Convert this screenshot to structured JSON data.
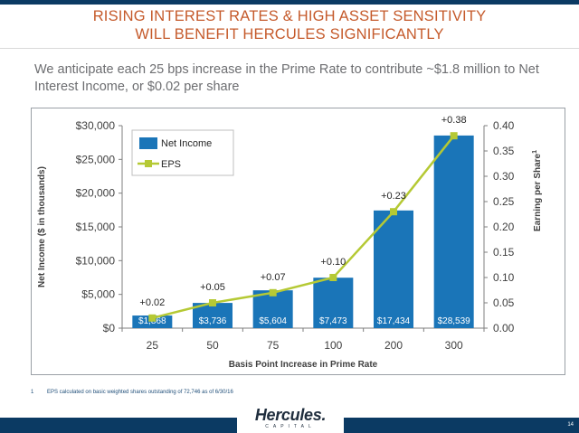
{
  "header": {
    "title_line1": "RISING INTEREST RATES & HIGH ASSET SENSITIVITY",
    "title_line2": "WILL BENEFIT HERCULES SIGNIFICANTLY"
  },
  "subtitle": "We anticipate each 25 bps increase in the Prime Rate to contribute ~$1.8 million to Net Interest Income, or $0.02 per share",
  "chart_data": {
    "type": "bar",
    "categories": [
      "25",
      "50",
      "75",
      "100",
      "200",
      "300"
    ],
    "xlabel": "Basis Point Increase in Prime Rate",
    "ylabel": "Net Income ($ in thousands)",
    "y2label": "Earning per Share",
    "y2label_superscript": "1",
    "ylim": [
      0,
      30000
    ],
    "y2lim": [
      0,
      0.4
    ],
    "yticks": [
      "$0",
      "$5,000",
      "$10,000",
      "$15,000",
      "$20,000",
      "$25,000",
      "$30,000"
    ],
    "y2ticks": [
      "0.00",
      "0.05",
      "0.10",
      "0.15",
      "0.20",
      "0.25",
      "0.30",
      "0.35",
      "0.40"
    ],
    "series": [
      {
        "name": "Net Income",
        "kind": "bar",
        "color": "#1a75b8",
        "values": [
          1868,
          3736,
          5604,
          7473,
          17434,
          28539
        ],
        "labels": [
          "$1,868",
          "$3,736",
          "$5,604",
          "$7,473",
          "$17,434",
          "$28,539"
        ]
      },
      {
        "name": "EPS",
        "kind": "line",
        "axis": "right",
        "color": "#b5c934",
        "values": [
          0.02,
          0.05,
          0.07,
          0.1,
          0.23,
          0.38
        ],
        "labels": [
          "+0.02",
          "+0.05",
          "+0.07",
          "+0.10",
          "+0.23",
          "+0.38"
        ]
      }
    ],
    "legend_position": "top-left",
    "grid": false
  },
  "footnote": {
    "number": "1",
    "text": "EPS calculated on basic weighted shares outstanding of 72,746 as of 6/30/16"
  },
  "footer": {
    "logo_word": "Hercules.",
    "logo_sub": "CAPITAL",
    "page_number": "14"
  },
  "colors": {
    "title": "#c55a2b",
    "navy": "#0b3a63",
    "bar": "#1a75b8",
    "eps_line": "#b5c934"
  }
}
